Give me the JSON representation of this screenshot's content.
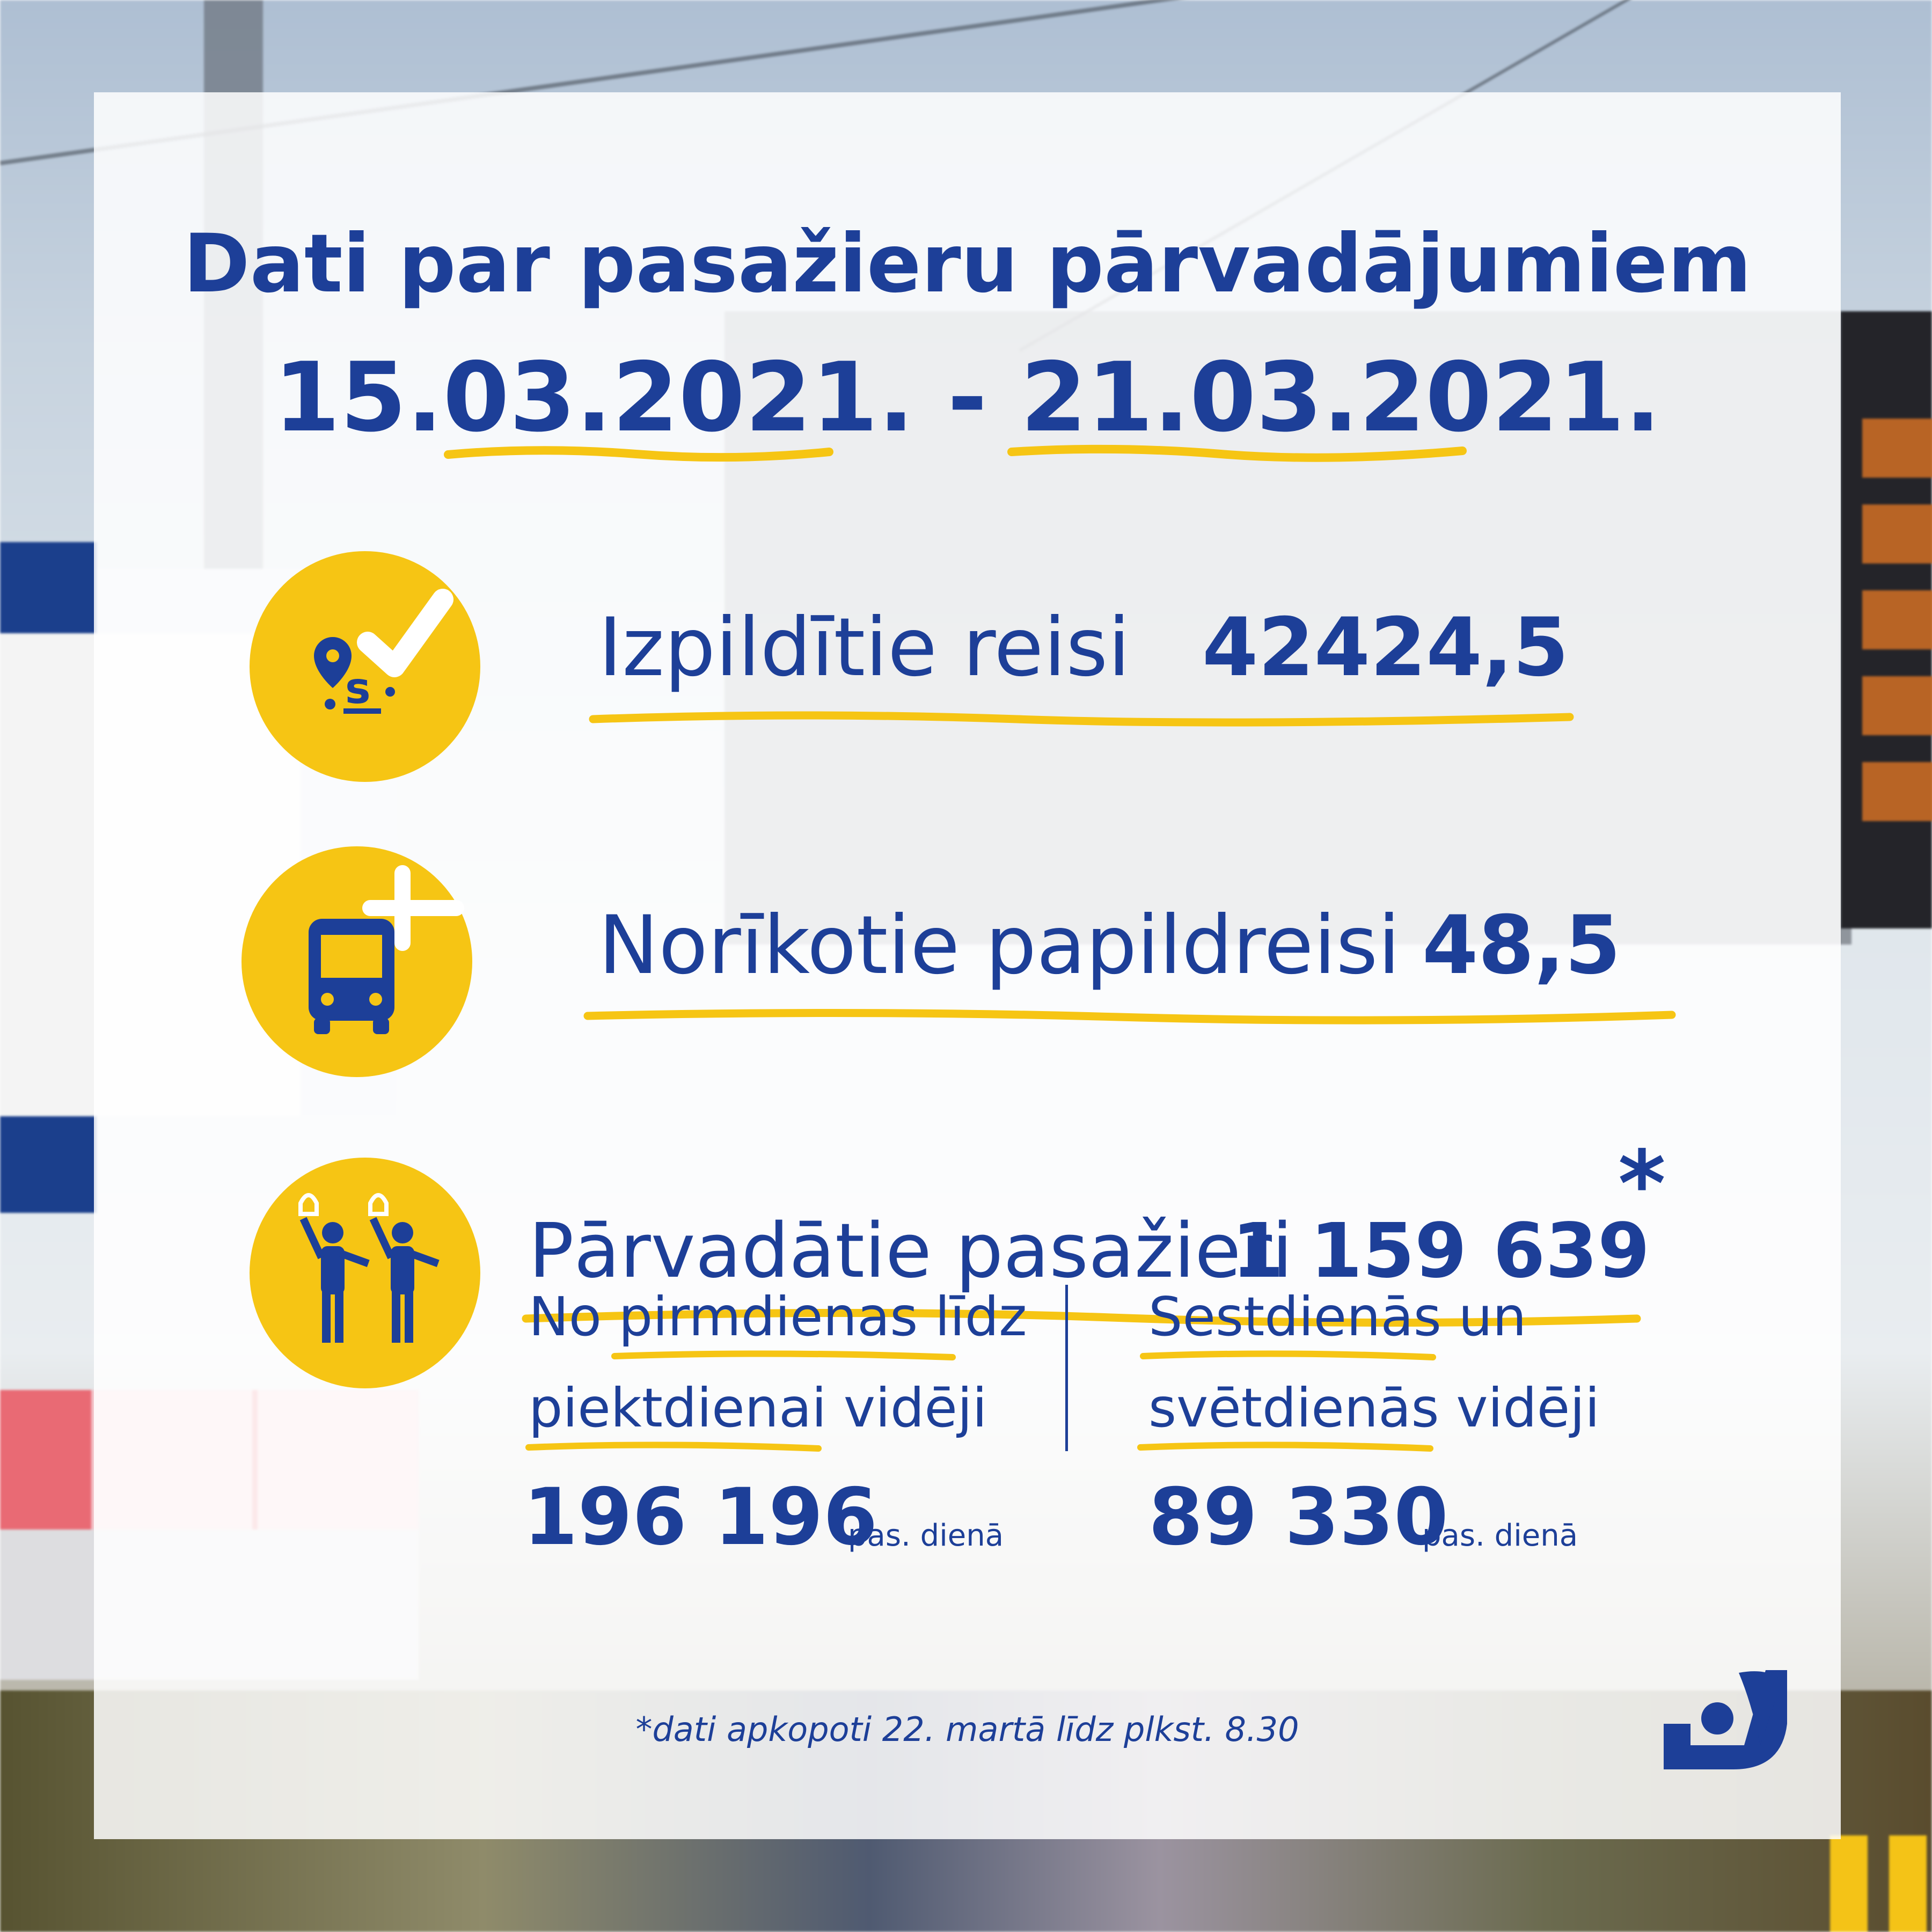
{
  "title": "Dati par pasažieru pārvadājumiem",
  "period": "15.03.2021. - 21.03.2021.",
  "stats": {
    "trips": {
      "label": "Izpildītie reisi",
      "value": "42424,5",
      "icon": "route-check-icon"
    },
    "extra_trips": {
      "label": "Norīkotie papildreisi",
      "value": "48,5",
      "icon": "bus-plus-icon"
    },
    "passengers": {
      "label": "Pārvadātie pasažieri",
      "value": "1 159 639",
      "asterisk": "*",
      "icon": "passengers-icon"
    }
  },
  "weekday": {
    "line1": "No pirmdienas līdz",
    "line2": "piektdienai vidēji",
    "value": "196 196",
    "unit": "pas. dienā"
  },
  "weekend": {
    "line1": "Sestdienās un",
    "line2": "svētdienās vidēji",
    "value": "89 330",
    "unit": "pas. dienā"
  },
  "footnote": "*dati apkopoti 22. martā līdz plkst. 8.30",
  "colors": {
    "brand_blue": "#1d3f98",
    "accent_yellow": "#f6c514",
    "panel": "#ffffff"
  }
}
